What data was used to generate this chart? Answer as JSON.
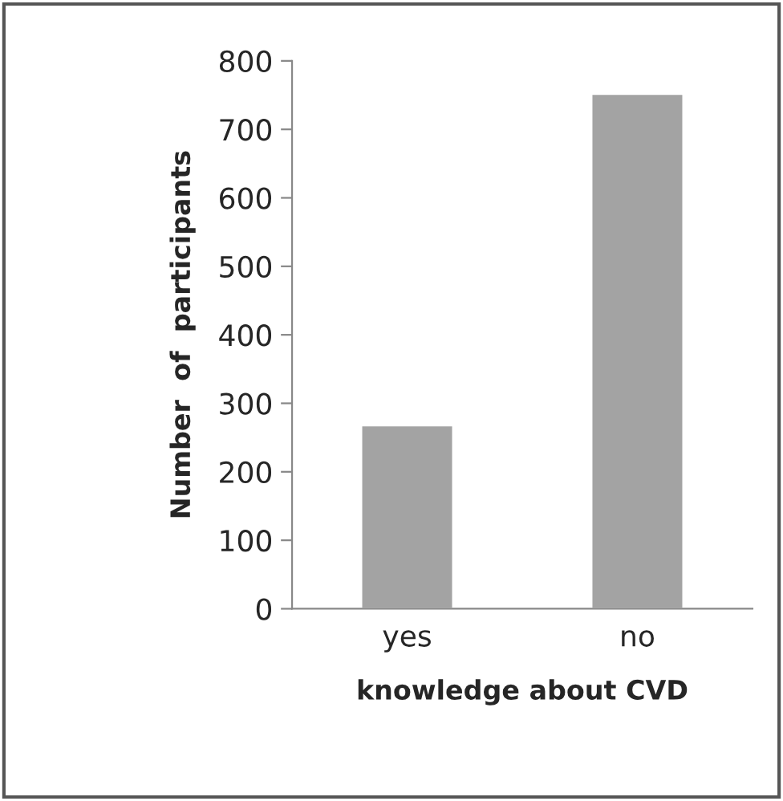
{
  "chart_data": {
    "type": "bar",
    "xlabel": "knowledge about CVD",
    "ylabel": "Number  of  participants",
    "categories": [
      "yes",
      "no"
    ],
    "values": [
      268,
      752
    ],
    "color": "#a3a3a3",
    "ylim": [
      0,
      800
    ],
    "yticks": [
      0,
      100,
      200,
      300,
      400,
      500,
      600,
      700,
      800
    ],
    "grid": false
  }
}
